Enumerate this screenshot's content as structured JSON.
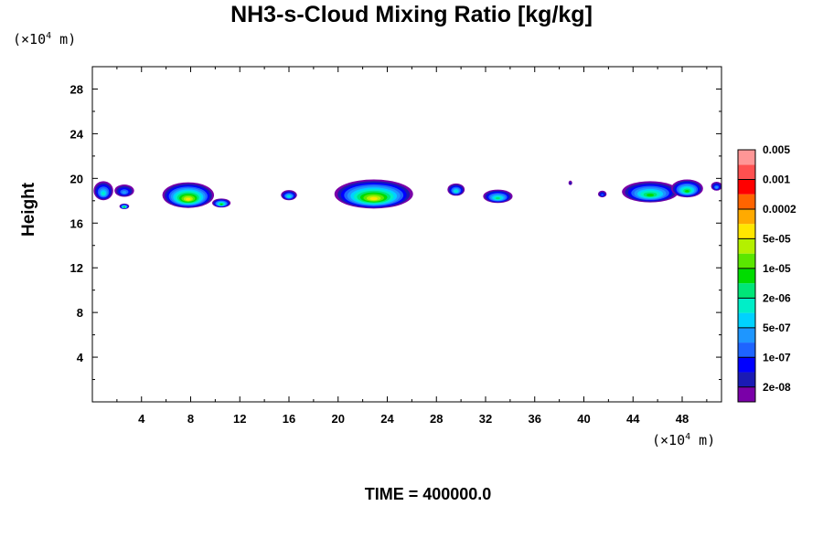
{
  "chart_data": {
    "type": "heatmap",
    "title": "NH3-s-Cloud Mixing Ratio [kg/kg]",
    "ylabel": "Height",
    "xlabel": "",
    "x_unit": {
      "prefix": "(×10",
      "exp": "4",
      "suffix": " m)"
    },
    "y_unit": {
      "prefix": "(×10",
      "exp": "4",
      "suffix": " m)"
    },
    "xlim": [
      0,
      51.2
    ],
    "ylim": [
      0,
      30
    ],
    "x_ticks": [
      4,
      8,
      12,
      16,
      20,
      24,
      28,
      32,
      36,
      40,
      44,
      48
    ],
    "y_ticks": [
      4,
      8,
      12,
      16,
      20,
      24,
      28
    ],
    "colorbar": {
      "colors": [
        "#7a00a8",
        "#1a1ab4",
        "#0000ff",
        "#1e64ff",
        "#1e96ff",
        "#00d2ff",
        "#00eec8",
        "#00e678",
        "#00dc00",
        "#5ae600",
        "#b4f000",
        "#ffe600",
        "#ffaa00",
        "#ff6400",
        "#ff0000",
        "#ff5050",
        "#ff9696"
      ],
      "labels": [
        "2e-08",
        "1e-07",
        "5e-07",
        "2e-06",
        "1e-05",
        "5e-05",
        "0.0002",
        "0.001",
        "0.005"
      ]
    },
    "clouds": [
      {
        "x": 0.9,
        "y": 18.9,
        "w": 1.6,
        "h": 1.7,
        "peak": 6
      },
      {
        "x": 2.6,
        "y": 18.9,
        "w": 1.6,
        "h": 1.1,
        "peak": 4
      },
      {
        "x": 2.6,
        "y": 17.5,
        "w": 0.8,
        "h": 0.5,
        "peak": 8
      },
      {
        "x": 7.8,
        "y": 18.5,
        "w": 4.2,
        "h": 2.3,
        "peak": 11
      },
      {
        "x": 10.5,
        "y": 17.8,
        "w": 1.5,
        "h": 0.8,
        "peak": 8
      },
      {
        "x": 16.0,
        "y": 18.5,
        "w": 1.3,
        "h": 0.9,
        "peak": 6
      },
      {
        "x": 22.9,
        "y": 18.6,
        "w": 6.4,
        "h": 2.6,
        "peak": 11
      },
      {
        "x": 29.6,
        "y": 19.0,
        "w": 1.4,
        "h": 1.1,
        "peak": 6
      },
      {
        "x": 33.0,
        "y": 18.4,
        "w": 2.4,
        "h": 1.2,
        "peak": 7
      },
      {
        "x": 41.5,
        "y": 18.6,
        "w": 0.7,
        "h": 0.6,
        "peak": 3
      },
      {
        "x": 45.4,
        "y": 18.8,
        "w": 4.6,
        "h": 1.9,
        "peak": 8
      },
      {
        "x": 48.4,
        "y": 19.1,
        "w": 2.6,
        "h": 1.6,
        "peak": 8
      },
      {
        "x": 50.8,
        "y": 19.3,
        "w": 0.9,
        "h": 0.8,
        "peak": 4
      },
      {
        "x": 38.9,
        "y": 19.6,
        "w": 0.3,
        "h": 0.4,
        "peak": 1
      }
    ]
  },
  "footer": {
    "time_label": "TIME = 400000.0"
  }
}
